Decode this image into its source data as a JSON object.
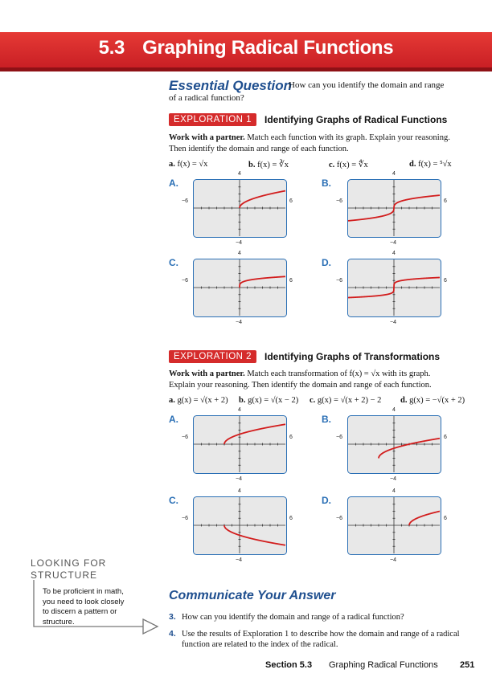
{
  "title": {
    "number": "5.3",
    "text": "Graphing Radical Functions"
  },
  "essential": {
    "heading": "Essential Question",
    "line1": "How can you identify the domain and range",
    "line2": "of a radical function?"
  },
  "exploration1": {
    "tag": "EXPLORATION 1",
    "title": "Identifying Graphs of Radical Functions",
    "intro_bold": "Work with a partner.",
    "intro_line1": "Match each function with its graph. Explain your reasoning.",
    "intro_line2": "Then identify the domain and range of each function.",
    "options": [
      {
        "letter": "a.",
        "text": "f(x) = √x"
      },
      {
        "letter": "b.",
        "text": "f(x) = ∛x"
      },
      {
        "letter": "c.",
        "text": "f(x) = ∜x"
      },
      {
        "letter": "d.",
        "text": "f(x) = ⁵√x"
      }
    ],
    "graph_labels": [
      "A.",
      "B.",
      "C.",
      "D."
    ]
  },
  "exploration2": {
    "tag": "EXPLORATION 2",
    "title": "Identifying Graphs of Transformations",
    "intro_bold": "Work with a partner.",
    "intro_line1": "Match each transformation of f(x) = √x with its graph.",
    "intro_line2": "Explain your reasoning. Then identify the domain and range of each function.",
    "options": [
      {
        "letter": "a.",
        "text": "g(x) = √(x + 2)"
      },
      {
        "letter": "b.",
        "text": "g(x) = √(x − 2)"
      },
      {
        "letter": "c.",
        "text": "g(x) = √(x + 2) − 2"
      },
      {
        "letter": "d.",
        "text": "g(x) = −√(x + 2)"
      }
    ],
    "graph_labels": [
      "A.",
      "B.",
      "C.",
      "D."
    ]
  },
  "axes": {
    "ymax": "4",
    "ymin": "−4",
    "xmin": "−6",
    "xmax": "6"
  },
  "sidebar": {
    "heading1": "LOOKING FOR",
    "heading2": "STRUCTURE",
    "lines": [
      "To be proficient in math,",
      "you need to look closely",
      "to discern a pattern or",
      "structure."
    ]
  },
  "communicate": {
    "heading": "Communicate Your Answer",
    "questions": [
      {
        "num": "3.",
        "line1": "How can you identify the domain and range of a radical function?",
        "line2": ""
      },
      {
        "num": "4.",
        "line1": "Use the results of Exploration 1 to describe how the domain and range of a radical",
        "line2": "function are related to the index of the radical."
      }
    ]
  },
  "footer": {
    "section": "Section 5.3",
    "title": "Graphing Radical Functions",
    "page": "251"
  },
  "colors": {
    "banner": "#d52b2b",
    "accent": "#1f4f8f",
    "curve": "#d21d1d",
    "graph_border": "#2a6fb5"
  },
  "chart_data": [
    {
      "type": "line",
      "label": "A.",
      "xlim": [
        -6,
        6
      ],
      "ylim": [
        -4,
        4
      ],
      "series": [
        {
          "fn": "sqrt"
        }
      ]
    },
    {
      "type": "line",
      "label": "B.",
      "xlim": [
        -6,
        6
      ],
      "ylim": [
        -4,
        4
      ],
      "series": [
        {
          "fn": "cbrt"
        }
      ]
    },
    {
      "type": "line",
      "label": "C.",
      "xlim": [
        -6,
        6
      ],
      "ylim": [
        -4,
        4
      ],
      "series": [
        {
          "fn": "root4"
        }
      ]
    },
    {
      "type": "line",
      "label": "D.",
      "xlim": [
        -6,
        6
      ],
      "ylim": [
        -4,
        4
      ],
      "series": [
        {
          "fn": "root5"
        }
      ]
    },
    {
      "type": "line",
      "label": "A.",
      "xlim": [
        -6,
        6
      ],
      "ylim": [
        -4,
        4
      ],
      "series": [
        {
          "fn": "sqrt",
          "shift": -2,
          "vshift": 0,
          "sign": 1
        }
      ]
    },
    {
      "type": "line",
      "label": "B.",
      "xlim": [
        -6,
        6
      ],
      "ylim": [
        -4,
        4
      ],
      "series": [
        {
          "fn": "sqrt",
          "shift": -2,
          "vshift": -2,
          "sign": 1
        }
      ]
    },
    {
      "type": "line",
      "label": "C.",
      "xlim": [
        -6,
        6
      ],
      "ylim": [
        -4,
        4
      ],
      "series": [
        {
          "fn": "sqrt",
          "shift": -2,
          "vshift": 0,
          "sign": -1
        }
      ]
    },
    {
      "type": "line",
      "label": "D.",
      "xlim": [
        -6,
        6
      ],
      "ylim": [
        -4,
        4
      ],
      "series": [
        {
          "fn": "sqrt",
          "shift": 2,
          "vshift": 0,
          "sign": 1
        }
      ]
    }
  ]
}
